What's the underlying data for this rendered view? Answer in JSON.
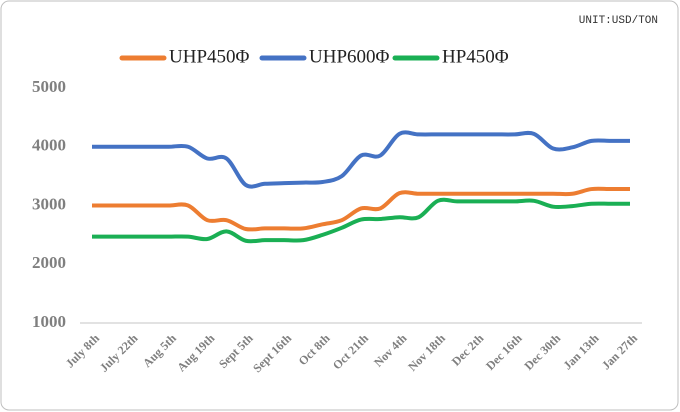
{
  "chart_data": {
    "type": "line",
    "unit": "UNIT:USD/TON",
    "categories": [
      "July 8th",
      null,
      "July 22th",
      null,
      "Aug 5th",
      null,
      "Aug 19th",
      null,
      "Sept  5th",
      null,
      "Sept  16th",
      null,
      "Oct 8th",
      null,
      "Oct 21th",
      null,
      "Nov 4th",
      null,
      "Nov 18th",
      null,
      "Dec 2th",
      null,
      "Dec 16th",
      null,
      "Dec 30th",
      null,
      "Jan 13th",
      null,
      "Jan 27th"
    ],
    "series": [
      {
        "name": "UHP450Φ",
        "color": "#ed7d31",
        "values": [
          3000,
          3000,
          3000,
          3000,
          3000,
          3000,
          2750,
          2750,
          2600,
          2610,
          2610,
          2610,
          2680,
          2750,
          2950,
          2950,
          3210,
          3200,
          3200,
          3200,
          3200,
          3200,
          3200,
          3200,
          3200,
          3200,
          3280,
          3280,
          3280
        ]
      },
      {
        "name": "UHP600Φ",
        "color": "#4472c4",
        "values": [
          4000,
          4000,
          4000,
          4000,
          4000,
          4000,
          3800,
          3800,
          3350,
          3370,
          3380,
          3390,
          3400,
          3500,
          3850,
          3850,
          4220,
          4210,
          4210,
          4210,
          4210,
          4210,
          4210,
          4220,
          3970,
          3990,
          4100,
          4100,
          4100
        ]
      },
      {
        "name": "HP450Φ",
        "color": "#1aaf54",
        "values": [
          2470,
          2470,
          2470,
          2470,
          2470,
          2470,
          2430,
          2560,
          2400,
          2410,
          2410,
          2410,
          2500,
          2620,
          2760,
          2770,
          2800,
          2800,
          3080,
          3070,
          3070,
          3070,
          3070,
          3080,
          2980,
          2990,
          3030,
          3030,
          3030
        ]
      }
    ],
    "ylim": [
      1000,
      5000
    ],
    "yticks": [
      1000,
      2000,
      3000,
      4000,
      5000
    ],
    "grid": false,
    "legend": "top"
  }
}
